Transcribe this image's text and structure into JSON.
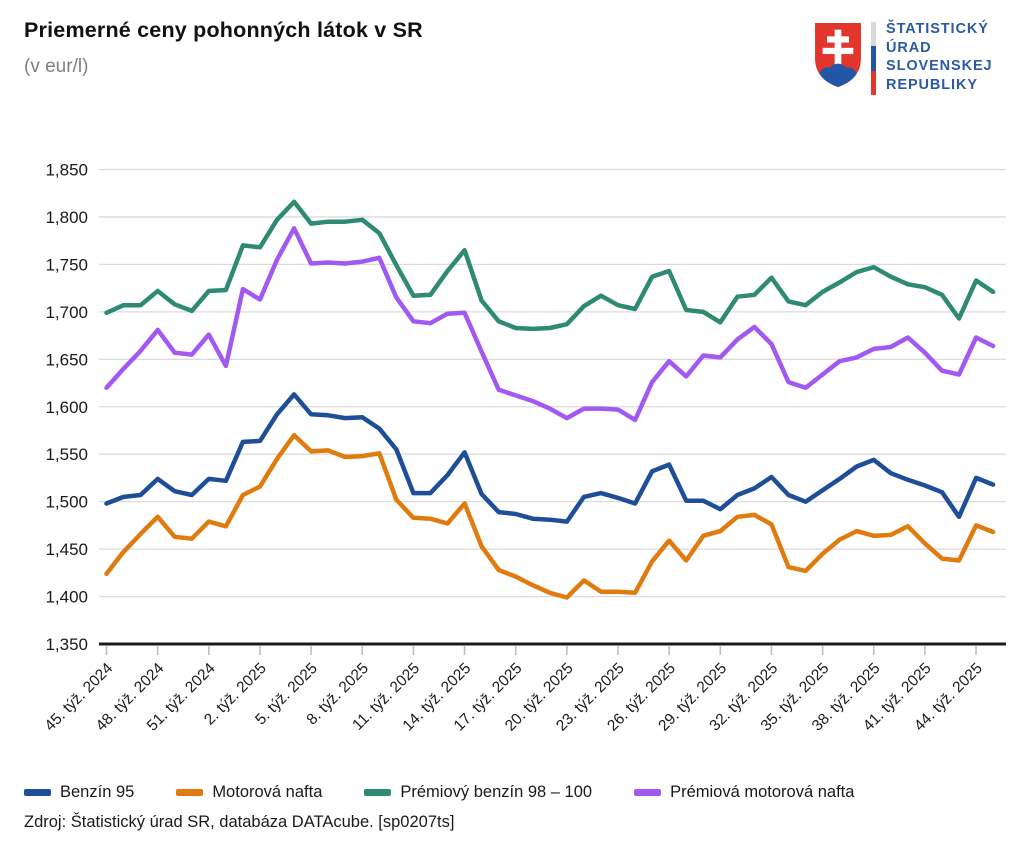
{
  "header": {
    "title": "Priemerné ceny pohonných látok v SR",
    "subtitle": "(v eur/l)"
  },
  "logo": {
    "org_lines": [
      "ŠTATISTICKÝ",
      "ÚRAD",
      "SLOVENSKEJ",
      "REPUBLIKY"
    ],
    "colors": {
      "shield_red": "#E2362C",
      "emblem_blue": "#2456A8",
      "text_blue": "#2B5AA6",
      "stripe_top": "#D9D9D9",
      "stripe_mid": "#2456A8",
      "stripe_bottom": "#E2362C"
    }
  },
  "chart_data": {
    "type": "line",
    "title": "Priemerné ceny pohonných látok v SR",
    "unit": "eur/l",
    "grid": true,
    "legend_position": "bottom",
    "ylim": [
      1.35,
      1.85
    ],
    "y_tick_step": 0.05,
    "y_tick_labels": [
      "1,850",
      "1,800",
      "1,750",
      "1,700",
      "1,650",
      "1,600",
      "1,550",
      "1,500",
      "1,450",
      "1,400",
      "1,350"
    ],
    "x_label_every": 3,
    "categories": [
      "45. týž. 2024",
      "46. týž. 2024",
      "47. týž. 2024",
      "48. týž. 2024",
      "49. týž. 2024",
      "50. týž. 2024",
      "51. týž. 2024",
      "52. týž. 2024",
      "1. týž. 2025",
      "2. týž. 2025",
      "3. týž. 2025",
      "4. týž. 2025",
      "5. týž. 2025",
      "6. týž. 2025",
      "7. týž. 2025",
      "8. týž. 2025",
      "9. týž. 2025",
      "10. týž. 2025",
      "11. týž. 2025",
      "12. týž. 2025",
      "13. týž. 2025",
      "14. týž. 2025",
      "15. týž. 2025",
      "16. týž. 2025",
      "17. týž. 2025",
      "18. týž. 2025",
      "19. týž. 2025",
      "20. týž. 2025",
      "21. týž. 2025",
      "22. týž. 2025",
      "23. týž. 2025",
      "24. týž. 2025",
      "25. týž. 2025",
      "26. týž. 2025",
      "27. týž. 2025",
      "28. týž. 2025",
      "29. týž. 2025",
      "30. týž. 2025",
      "31. týž. 2025",
      "32. týž. 2025",
      "33. týž. 2025",
      "34. týž. 2025",
      "35. týž. 2025",
      "36. týž. 2025",
      "37. týž. 2025",
      "38. týž. 2025",
      "39. týž. 2025",
      "40. týž. 2025",
      "41. týž. 2025",
      "42. týž. 2025",
      "43. týž. 2025",
      "44. týž. 2025",
      "45. týž. 2025"
    ],
    "series": [
      {
        "name": "Benzín 95",
        "color": "#1F4E99",
        "values": [
          1.498,
          1.505,
          1.507,
          1.524,
          1.511,
          1.507,
          1.524,
          1.522,
          1.563,
          1.564,
          1.592,
          1.613,
          1.592,
          1.591,
          1.588,
          1.589,
          1.577,
          1.555,
          1.509,
          1.509,
          1.528,
          1.552,
          1.508,
          1.489,
          1.487,
          1.482,
          1.481,
          1.479,
          1.505,
          1.509,
          1.504,
          1.498,
          1.532,
          1.539,
          1.501,
          1.501,
          1.492,
          1.507,
          1.514,
          1.526,
          1.507,
          1.5,
          1.512,
          1.524,
          1.537,
          1.544,
          1.53,
          1.523,
          1.517,
          1.51,
          1.484,
          1.525,
          1.518
        ]
      },
      {
        "name": "Motorová nafta",
        "color": "#E07B10",
        "values": [
          1.424,
          1.447,
          1.466,
          1.484,
          1.463,
          1.461,
          1.479,
          1.474,
          1.507,
          1.516,
          1.545,
          1.57,
          1.553,
          1.554,
          1.547,
          1.548,
          1.551,
          1.502,
          1.483,
          1.482,
          1.477,
          1.498,
          1.453,
          1.428,
          1.421,
          1.412,
          1.404,
          1.399,
          1.417,
          1.405,
          1.405,
          1.404,
          1.437,
          1.459,
          1.438,
          1.464,
          1.469,
          1.484,
          1.486,
          1.476,
          1.431,
          1.427,
          1.445,
          1.46,
          1.469,
          1.464,
          1.465,
          1.474,
          1.456,
          1.44,
          1.438,
          1.475,
          1.468
        ]
      },
      {
        "name": "Prémiový benzín 98 – 100",
        "color": "#2E8B72",
        "values": [
          1.699,
          1.707,
          1.707,
          1.722,
          1.708,
          1.701,
          1.722,
          1.723,
          1.77,
          1.768,
          1.797,
          1.816,
          1.793,
          1.795,
          1.795,
          1.797,
          1.783,
          1.749,
          1.717,
          1.718,
          1.743,
          1.765,
          1.712,
          1.69,
          1.683,
          1.682,
          1.683,
          1.687,
          1.706,
          1.717,
          1.707,
          1.703,
          1.737,
          1.743,
          1.702,
          1.7,
          1.689,
          1.716,
          1.718,
          1.736,
          1.711,
          1.707,
          1.721,
          1.731,
          1.742,
          1.747,
          1.737,
          1.729,
          1.726,
          1.718,
          1.693,
          1.733,
          1.721
        ]
      },
      {
        "name": "Prémiová motorová nafta",
        "color": "#A259F2",
        "values": [
          1.62,
          1.64,
          1.659,
          1.681,
          1.657,
          1.655,
          1.676,
          1.643,
          1.724,
          1.713,
          1.755,
          1.788,
          1.751,
          1.752,
          1.751,
          1.753,
          1.757,
          1.715,
          1.69,
          1.688,
          1.698,
          1.699,
          1.658,
          1.618,
          1.612,
          1.606,
          1.598,
          1.588,
          1.598,
          1.598,
          1.597,
          1.586,
          1.626,
          1.648,
          1.632,
          1.654,
          1.652,
          1.671,
          1.684,
          1.666,
          1.626,
          1.62,
          1.634,
          1.648,
          1.652,
          1.661,
          1.663,
          1.673,
          1.657,
          1.638,
          1.634,
          1.673,
          1.664
        ]
      }
    ]
  },
  "source": "Zdroj: Štatistický úrad SR, databáza DATAcube. [sp0207ts]",
  "style": {
    "grid_color": "#DBDBDB",
    "axis_color": "#1A1A1A",
    "tick_color": "#BFBFBF",
    "label_color": "#1A1A1A"
  }
}
